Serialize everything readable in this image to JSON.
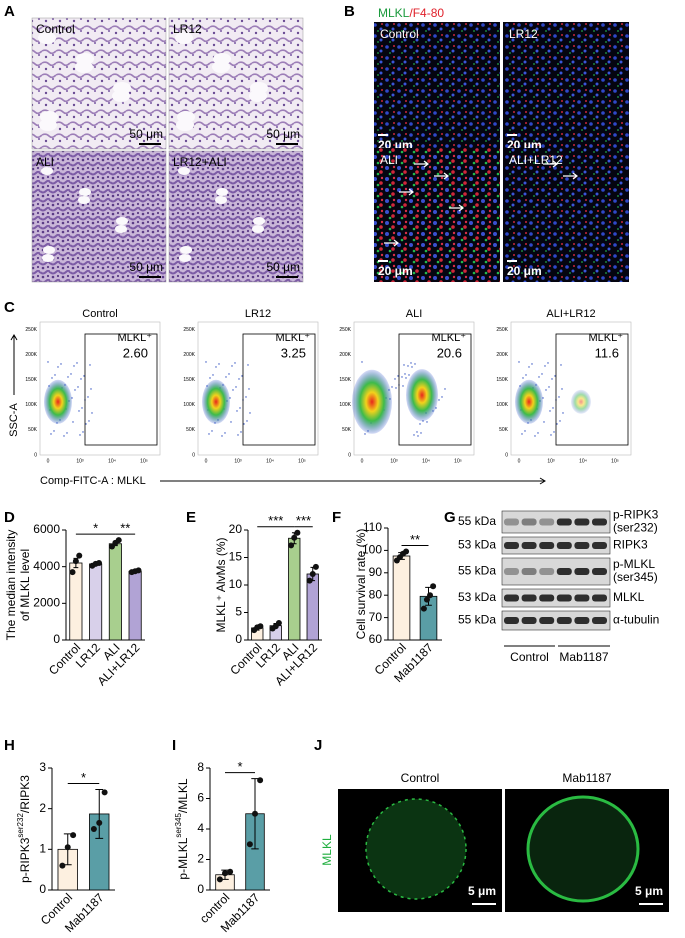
{
  "panel_labels": [
    "A",
    "B",
    "C",
    "D",
    "E",
    "F",
    "G",
    "H",
    "I",
    "J"
  ],
  "histology": {
    "labels": [
      "Control",
      "LR12",
      "ALI",
      "LR12+ALI"
    ],
    "scale_bar": "50 μm"
  },
  "immunofluorescence": {
    "title_parts": [
      "MLKL",
      "/F4-80"
    ],
    "labels": [
      "Control",
      "LR12",
      "ALI",
      "ALI+LR12"
    ],
    "scale_bar": "20 μm"
  },
  "flow": {
    "plots": [
      {
        "title": "Control",
        "gate": "MLKL⁺",
        "value": "2.60"
      },
      {
        "title": "LR12",
        "gate": "MLKL⁺",
        "value": "3.25"
      },
      {
        "title": "ALI",
        "gate": "MLKL⁺",
        "value": "20.6"
      },
      {
        "title": "ALI+LR12",
        "gate": "MLKL⁺",
        "value": "11.6"
      }
    ],
    "yticks": [
      "0",
      "50K",
      "100K",
      "150K",
      "200K",
      "250K"
    ],
    "xticks": [
      "0",
      "10³",
      "10⁴",
      "10⁵"
    ],
    "ylabel": "SSC-A",
    "xlabel": "Comp-FITC-A : MLKL"
  },
  "western": {
    "kda": [
      "55 kDa",
      "53 kDa",
      "55 kDa",
      "53 kDa",
      "55 kDa"
    ],
    "proteins": [
      [
        "p-RIPK3",
        "(ser232)"
      ],
      [
        "RIPK3"
      ],
      [
        "p-MLKL",
        "(ser345)"
      ],
      [
        "MLKL"
      ],
      [
        "α-tubulin"
      ]
    ],
    "groups": [
      "Control",
      "Mab1187"
    ]
  },
  "microscopy": {
    "labels": [
      "Control",
      "Mab1187"
    ],
    "channel": "MLKL",
    "scale_bar": "5 μm"
  },
  "chart_data": [
    {
      "type": "bar",
      "ylabel": [
        "The median intensity",
        "of MLKL level"
      ],
      "categories": [
        "Control",
        "LR12",
        "ALI",
        "ALI+LR12"
      ],
      "values": [
        4200,
        4150,
        5250,
        3750
      ],
      "errors": [
        250,
        50,
        100,
        30
      ],
      "points": [
        [
          3700,
          4300,
          4600
        ],
        [
          4050,
          4150,
          4200
        ],
        [
          5100,
          5300,
          5450
        ],
        [
          3700,
          3750,
          3800
        ]
      ],
      "colors": [
        "#fdf0e0",
        "#d8d0ea",
        "#a8cf8e",
        "#b1a3d5"
      ],
      "ylim": [
        0,
        6000
      ],
      "yticks": [
        0,
        2000,
        4000,
        6000
      ],
      "brackets": [
        {
          "label": "*",
          "between": [
            "Control",
            "ALI"
          ]
        },
        {
          "label": "**",
          "between": [
            "ALI",
            "ALI+LR12"
          ]
        }
      ]
    },
    {
      "type": "bar",
      "ylabel": [
        "MLKL⁺ AlvMs (%)"
      ],
      "categories": [
        "Control",
        "LR12",
        "ALI",
        "ALI+LR12"
      ],
      "values": [
        2.2,
        2.6,
        18.5,
        12.0
      ],
      "errors": [
        0.4,
        0.4,
        1.0,
        1.2
      ],
      "points": [
        [
          1.8,
          2.3,
          2.5
        ],
        [
          2.1,
          2.5,
          3.1
        ],
        [
          17.2,
          18.6,
          19.5
        ],
        [
          10.8,
          12.0,
          13.3
        ]
      ],
      "colors": [
        "#fdf0e0",
        "#d8d0ea",
        "#a8cf8e",
        "#b1a3d5"
      ],
      "ylim": [
        0,
        20
      ],
      "yticks": [
        0,
        5,
        10,
        15,
        20
      ],
      "brackets": [
        {
          "label": "***",
          "between": [
            "Control",
            "ALI"
          ]
        },
        {
          "label": "***",
          "between": [
            "ALI",
            "ALI+LR12"
          ]
        }
      ]
    },
    {
      "type": "bar",
      "ylabel": [
        "Cell survival rate (%)"
      ],
      "categories": [
        "Control",
        "Mab1187"
      ],
      "values": [
        97.5,
        79.5
      ],
      "errors": [
        1.5,
        4.0
      ],
      "points": [
        [
          95.5,
          97,
          98.5,
          99.5
        ],
        [
          74,
          78,
          80,
          84
        ]
      ],
      "colors": [
        "#fdf0e0",
        "#5a9ea6"
      ],
      "ylim": [
        60,
        110
      ],
      "yticks": [
        60,
        70,
        80,
        90,
        100,
        110
      ],
      "brackets": [
        {
          "label": "**",
          "between": [
            "Control",
            "Mab1187"
          ]
        }
      ]
    },
    {
      "type": "bar",
      "ylabel": [
        {
          "base": "p-RIPK3",
          "sup": "ser232",
          "after": "/RIPK3"
        }
      ],
      "categories": [
        "Control",
        "Mab1187"
      ],
      "values": [
        1.0,
        1.87
      ],
      "errors": [
        0.38,
        0.6
      ],
      "points": [
        [
          0.6,
          1.05,
          1.35
        ],
        [
          1.5,
          1.65,
          2.4
        ]
      ],
      "colors": [
        "#fdf0e0",
        "#5a9ea6"
      ],
      "ylim": [
        0,
        3
      ],
      "yticks": [
        0,
        1,
        2,
        3
      ],
      "brackets": [
        {
          "label": "*",
          "between": [
            "Control",
            "Mab1187"
          ]
        }
      ]
    },
    {
      "type": "bar",
      "ylabel": [
        {
          "base": "p-MLKL",
          "sup": "ser345",
          "after": "/MLKL"
        }
      ],
      "categories": [
        "control",
        "Mab1187"
      ],
      "values": [
        1.0,
        5.0
      ],
      "errors": [
        0.3,
        2.3
      ],
      "points": [
        [
          0.7,
          1.1,
          1.2
        ],
        [
          3.0,
          5.0,
          7.2
        ]
      ],
      "colors": [
        "#fdf0e0",
        "#5a9ea6"
      ],
      "ylim": [
        0,
        8
      ],
      "yticks": [
        0,
        2,
        4,
        6,
        8
      ],
      "brackets": [
        {
          "label": "*",
          "between": [
            "control",
            "Mab1187"
          ]
        }
      ]
    }
  ]
}
